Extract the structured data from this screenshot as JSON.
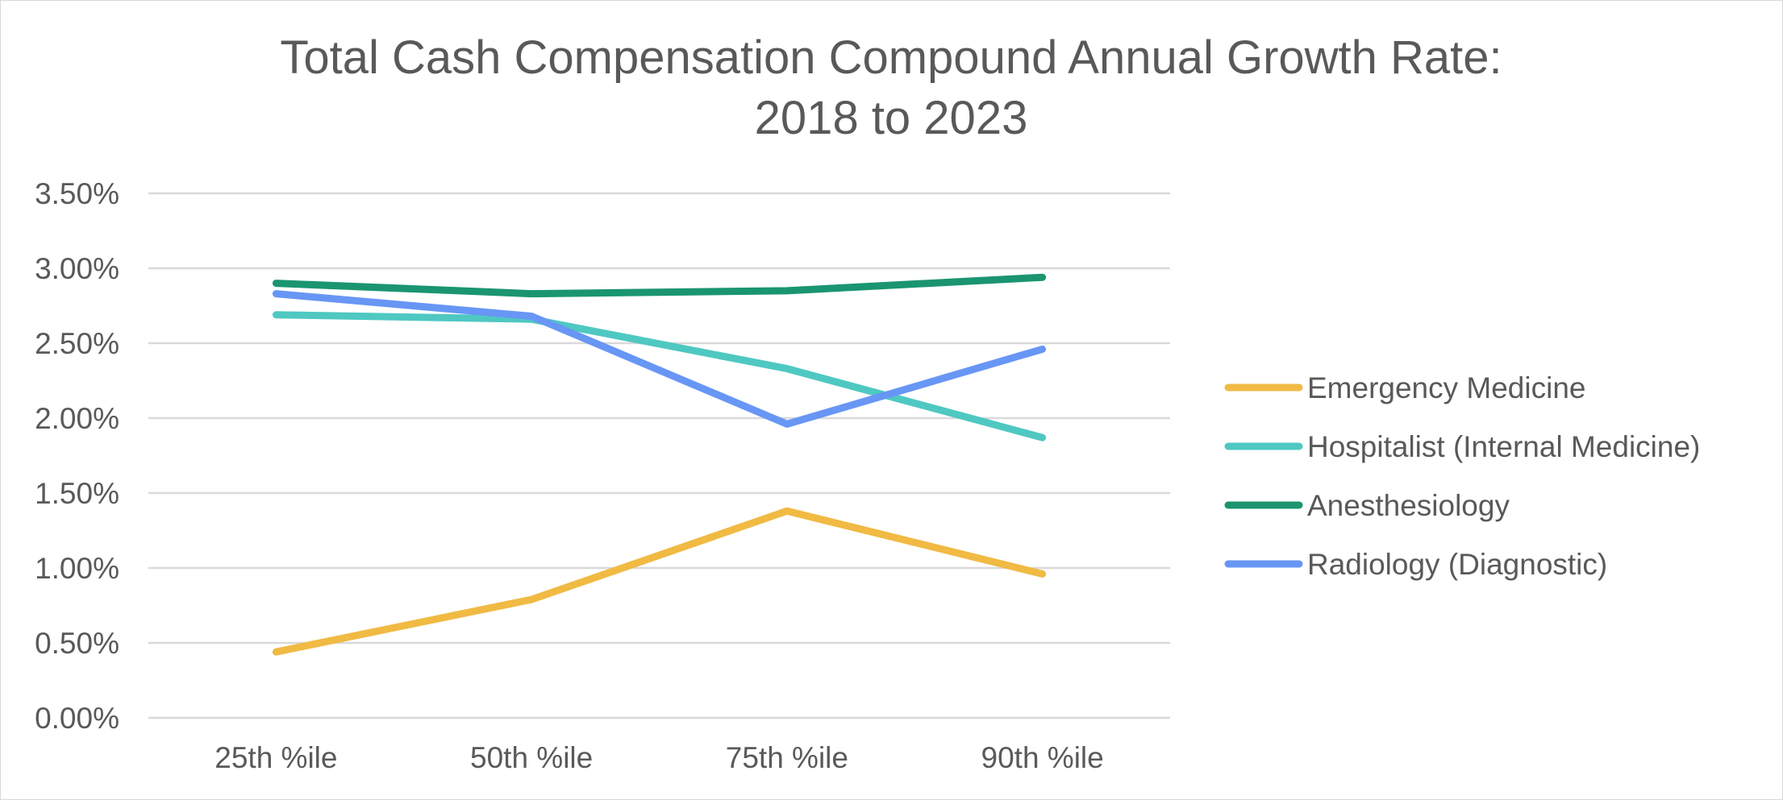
{
  "chart_data": {
    "type": "line",
    "title": "Total Cash Compensation Compound Annual Growth Rate:",
    "subtitle": "2018 to 2023",
    "xlabel": "",
    "ylabel": "",
    "categories": [
      "25th %ile",
      "50th %ile",
      "75th %ile",
      "90th %ile"
    ],
    "y_ticks": [
      "0.00%",
      "0.50%",
      "1.00%",
      "1.50%",
      "2.00%",
      "2.50%",
      "3.00%",
      "3.50%"
    ],
    "ylim": [
      0,
      3.5
    ],
    "y_unit": "%",
    "grid": true,
    "legend_position": "right",
    "series": [
      {
        "name": "Emergency Medicine",
        "color": "#F0BA43",
        "values": [
          0.44,
          0.79,
          1.38,
          0.96
        ]
      },
      {
        "name": "Hospitalist (Internal Medicine)",
        "color": "#4FC8C2",
        "values": [
          2.69,
          2.66,
          2.33,
          1.87
        ]
      },
      {
        "name": "Anesthesiology",
        "color": "#1A9570",
        "values": [
          2.9,
          2.83,
          2.85,
          2.94
        ]
      },
      {
        "name": "Radiology (Diagnostic)",
        "color": "#6896F5",
        "values": [
          2.83,
          2.68,
          1.96,
          2.46
        ]
      }
    ]
  }
}
